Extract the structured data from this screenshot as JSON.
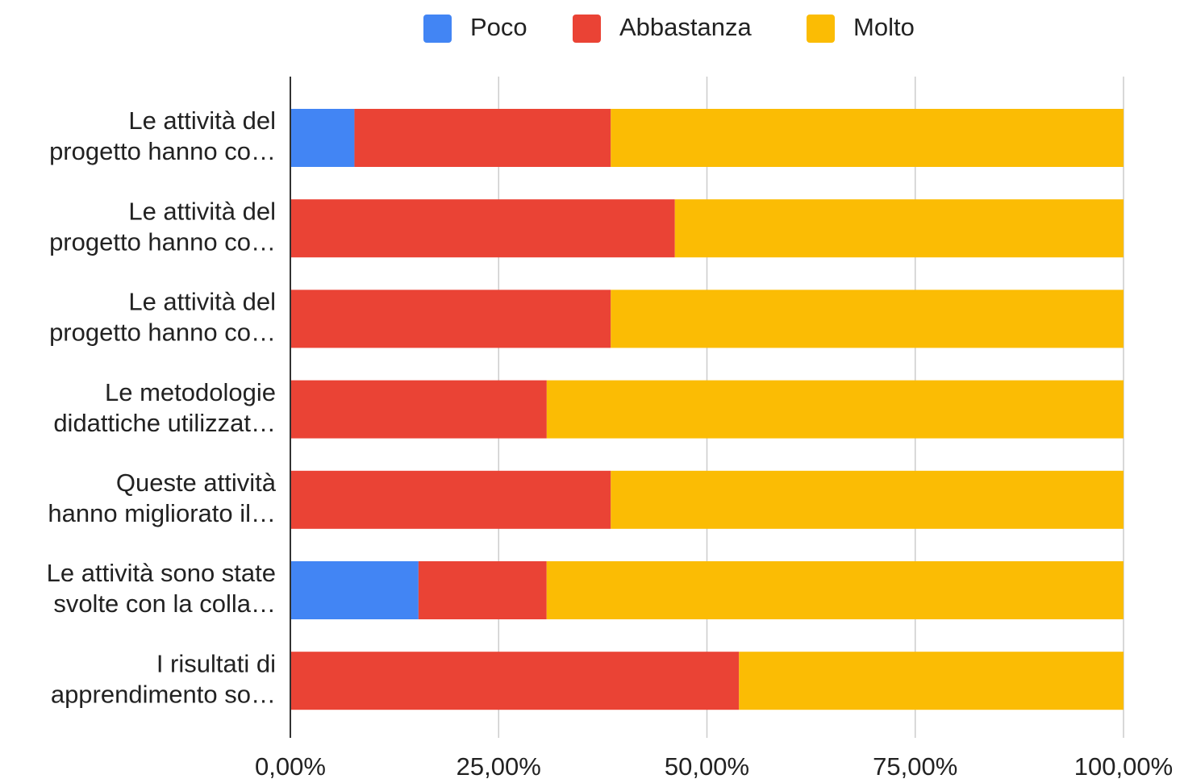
{
  "chart_data": {
    "type": "stacked_bar_horizontal",
    "categories": [
      [
        "Le attività del",
        "progetto hanno co…"
      ],
      [
        "Le attività del",
        "progetto hanno co…"
      ],
      [
        "Le attività del",
        "progetto hanno co…"
      ],
      [
        "Le metodologie",
        "didattiche utilizzat…"
      ],
      [
        "Queste attività",
        "hanno migliorato il…"
      ],
      [
        "Le attività sono state",
        "svolte con la colla…"
      ],
      [
        "I risultati di",
        "apprendimento so…"
      ]
    ],
    "series": [
      {
        "name": "Poco",
        "color": "#4285f4",
        "values": [
          7.69,
          0,
          0,
          0,
          0,
          15.38,
          0
        ]
      },
      {
        "name": "Abbastanza",
        "color": "#ea4335",
        "values": [
          30.77,
          46.15,
          38.46,
          30.77,
          38.46,
          15.38,
          53.85
        ]
      },
      {
        "name": "Molto",
        "color": "#fbbc04",
        "values": [
          61.54,
          53.85,
          61.54,
          69.23,
          61.54,
          69.23,
          46.15
        ]
      }
    ],
    "xlim": [
      0,
      100
    ],
    "xticks": [
      {
        "value": 0,
        "label": "0,00%"
      },
      {
        "value": 25,
        "label": "25,00%"
      },
      {
        "value": 50,
        "label": "50,00%"
      },
      {
        "value": 75,
        "label": "75,00%"
      },
      {
        "value": 100,
        "label": "100,00%"
      }
    ],
    "grid": true,
    "legend": "top"
  }
}
